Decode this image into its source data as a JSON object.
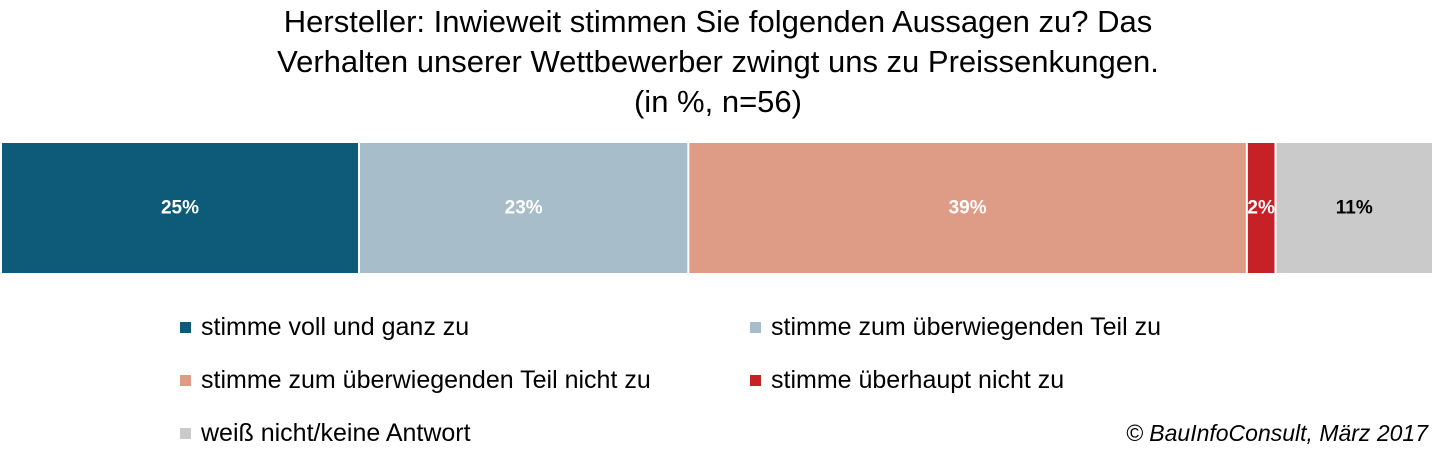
{
  "chart_data": {
    "type": "bar",
    "orientation": "horizontal",
    "stacked": true,
    "title_lines": [
      "Hersteller: Inwieweit stimmen Sie folgenden Aussagen zu? Das",
      "Verhalten unserer Wettbewerber zwingt uns zu Preissenkungen.",
      "(in %, n=56)"
    ],
    "categories": [
      ""
    ],
    "series": [
      {
        "name": "stimme voll und ganz zu",
        "values": [
          25
        ],
        "label": "25%",
        "color": "#0D5B79",
        "label_color": "#ffffff"
      },
      {
        "name": "stimme zum überwiegenden Teil zu",
        "values": [
          23
        ],
        "label": "23%",
        "color": "#A7BDCA",
        "label_color": "#ffffff"
      },
      {
        "name": "stimme zum überwiegenden Teil nicht zu",
        "values": [
          39
        ],
        "label": "39%",
        "color": "#DE9B86",
        "label_color": "#ffffff"
      },
      {
        "name": "stimme überhaupt nicht zu",
        "values": [
          2
        ],
        "label": "2%",
        "color": "#C62127",
        "label_color": "#ffffff"
      },
      {
        "name": "weiß nicht/keine Antwort",
        "values": [
          11
        ],
        "label": "11%",
        "color": "#CACACA",
        "label_color": "#000000"
      }
    ],
    "legend_position": "bottom",
    "grid": false
  },
  "source": "© BauInfoConsult, März 2017"
}
